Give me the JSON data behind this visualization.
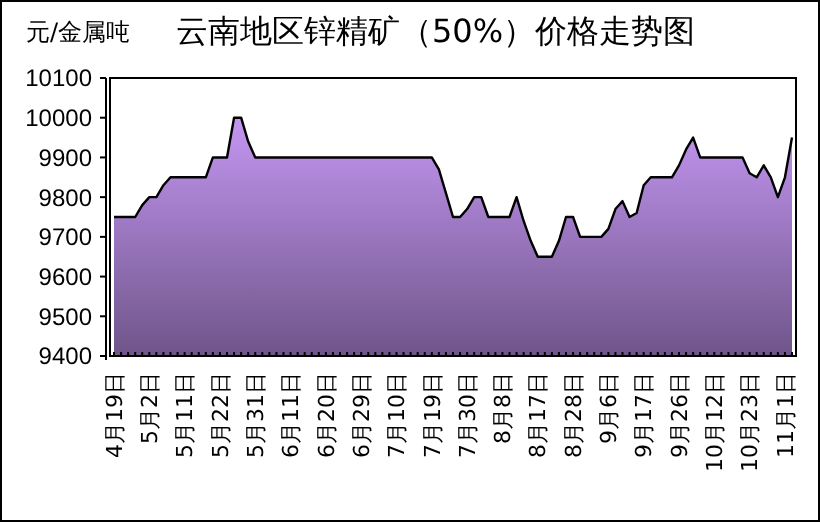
{
  "chart_data": {
    "type": "area",
    "title": "云南地区锌精矿（50%）价格走势图",
    "ylabel": "元/金属吨",
    "categories": [
      "4月19日",
      null,
      null,
      null,
      null,
      "5月2日",
      null,
      null,
      null,
      null,
      "5月11日",
      null,
      null,
      null,
      null,
      "5月22日",
      null,
      null,
      null,
      null,
      "5月31日",
      null,
      null,
      null,
      null,
      "6月11日",
      null,
      null,
      null,
      null,
      "6月20日",
      null,
      null,
      null,
      null,
      "6月29日",
      null,
      null,
      null,
      null,
      "7月10日",
      null,
      null,
      null,
      null,
      "7月19日",
      null,
      null,
      null,
      null,
      "7月30日",
      null,
      null,
      null,
      null,
      "8月8日",
      null,
      null,
      null,
      null,
      "8月17日",
      null,
      null,
      null,
      null,
      "8月28日",
      null,
      null,
      null,
      null,
      "9月6日",
      null,
      null,
      null,
      null,
      "9月17日",
      null,
      null,
      null,
      null,
      "9月26日",
      null,
      null,
      null,
      null,
      "10月12日",
      null,
      null,
      null,
      null,
      "10月23日",
      null,
      null,
      null,
      null,
      "11月1日",
      null
    ],
    "series": [
      {
        "color": "#c496f2",
        "values": [
          9750,
          9750,
          9750,
          9750,
          9780,
          9800,
          9800,
          9830,
          9850,
          9850,
          9850,
          9850,
          9850,
          9850,
          9900,
          9900,
          9900,
          10000,
          10000,
          9940,
          9900,
          9900,
          9900,
          9900,
          9900,
          9900,
          9900,
          9900,
          9900,
          9900,
          9900,
          9900,
          9900,
          9900,
          9900,
          9900,
          9900,
          9900,
          9900,
          9900,
          9900,
          9900,
          9900,
          9900,
          9900,
          9900,
          9870,
          9810,
          9750,
          9750,
          9770,
          9800,
          9800,
          9750,
          9750,
          9750,
          9750,
          9800,
          9740,
          9690,
          9650,
          9650,
          9650,
          9690,
          9750,
          9750,
          9700,
          9700,
          9700,
          9700,
          9720,
          9770,
          9790,
          9750,
          9760,
          9830,
          9850,
          9850,
          9850,
          9850,
          9880,
          9920,
          9950,
          9900,
          9900,
          9900,
          9900,
          9900,
          9900,
          9900,
          9860,
          9850,
          9880,
          9850,
          9800,
          9850,
          9950
        ]
      }
    ],
    "ylim": [
      9400,
      10100
    ],
    "yticks": [
      9400,
      9500,
      9600,
      9700,
      9800,
      9900,
      10000,
      10100
    ],
    "grid": false
  }
}
